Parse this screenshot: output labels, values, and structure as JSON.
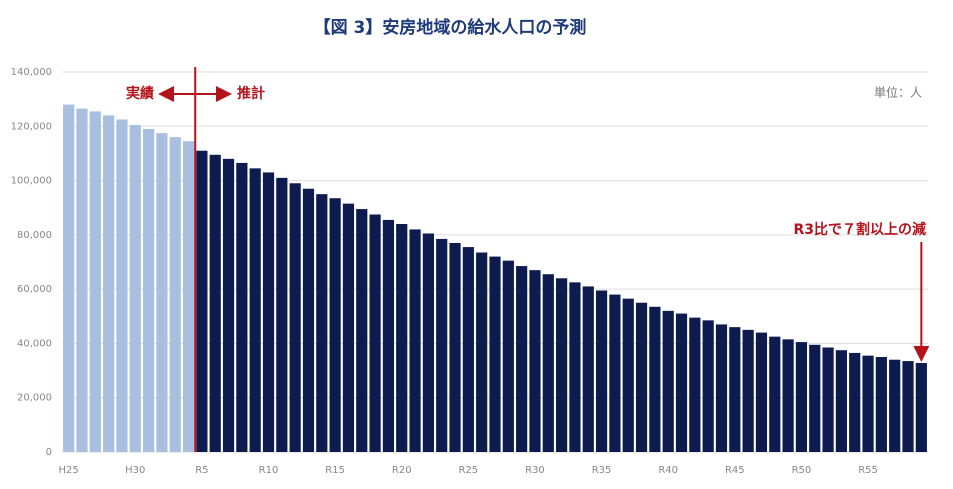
{
  "chart_data": {
    "type": "bar",
    "title": "【図 3】安房地域の給水人口の予測",
    "unit_note": "単位：人",
    "annotation": "R3比で７割以上の減",
    "categories": [
      "H25",
      null,
      null,
      null,
      null,
      "H30",
      null,
      null,
      null,
      null,
      "R5",
      null,
      null,
      null,
      null,
      "R10",
      null,
      null,
      null,
      null,
      "R15",
      null,
      null,
      null,
      null,
      "R20",
      null,
      null,
      null,
      null,
      "R25",
      null,
      null,
      null,
      null,
      "R30",
      null,
      null,
      null,
      null,
      "R35",
      null,
      null,
      null,
      null,
      "R40",
      null,
      null,
      null,
      null,
      "R45",
      null,
      null,
      null,
      null,
      "R50",
      null,
      null,
      null,
      null,
      "R55",
      null,
      null,
      null,
      null
    ],
    "series": [
      {
        "name": "実績",
        "color": "#a9bfe0",
        "values": [
          128000,
          126500,
          125500,
          124000,
          122500,
          120500,
          119000,
          117500,
          116000,
          114500,
          null,
          null,
          null,
          null,
          null,
          null,
          null,
          null,
          null,
          null,
          null,
          null,
          null,
          null,
          null,
          null,
          null,
          null,
          null,
          null,
          null,
          null,
          null,
          null,
          null,
          null,
          null,
          null,
          null,
          null,
          null,
          null,
          null,
          null,
          null,
          null,
          null,
          null,
          null,
          null,
          null,
          null,
          null,
          null,
          null,
          null,
          null,
          null,
          null,
          null,
          null,
          null,
          null,
          null,
          null
        ]
      },
      {
        "name": "推計",
        "color": "#0d1b4f",
        "values": [
          null,
          null,
          null,
          null,
          null,
          null,
          null,
          null,
          null,
          null,
          111000,
          109500,
          108000,
          106500,
          104500,
          103000,
          101000,
          99000,
          97000,
          95000,
          93500,
          91500,
          89500,
          87500,
          85500,
          84000,
          82000,
          80500,
          78500,
          77000,
          75500,
          73500,
          72000,
          70500,
          68500,
          67000,
          65500,
          64000,
          62500,
          61000,
          59500,
          58000,
          56500,
          55000,
          53500,
          52000,
          51000,
          49500,
          48500,
          47000,
          46000,
          45000,
          44000,
          42500,
          41500,
          40500,
          39500,
          38500,
          37500,
          36500,
          35500,
          35000,
          34000,
          33500,
          32800
        ]
      }
    ],
    "ylim": [
      0,
      140000
    ],
    "yticks": [
      0,
      {
        "value": 20000,
        "label": "20,000"
      },
      {
        "value": 40000,
        "label": "40,000"
      },
      {
        "value": 60000,
        "label": "60,000"
      },
      {
        "value": 80000,
        "label": "80,000"
      },
      {
        "value": 100000,
        "label": "100,000"
      },
      {
        "value": 120000,
        "label": "120,000"
      },
      {
        "value": 140000,
        "label": "140,000"
      }
    ],
    "grid": true
  }
}
